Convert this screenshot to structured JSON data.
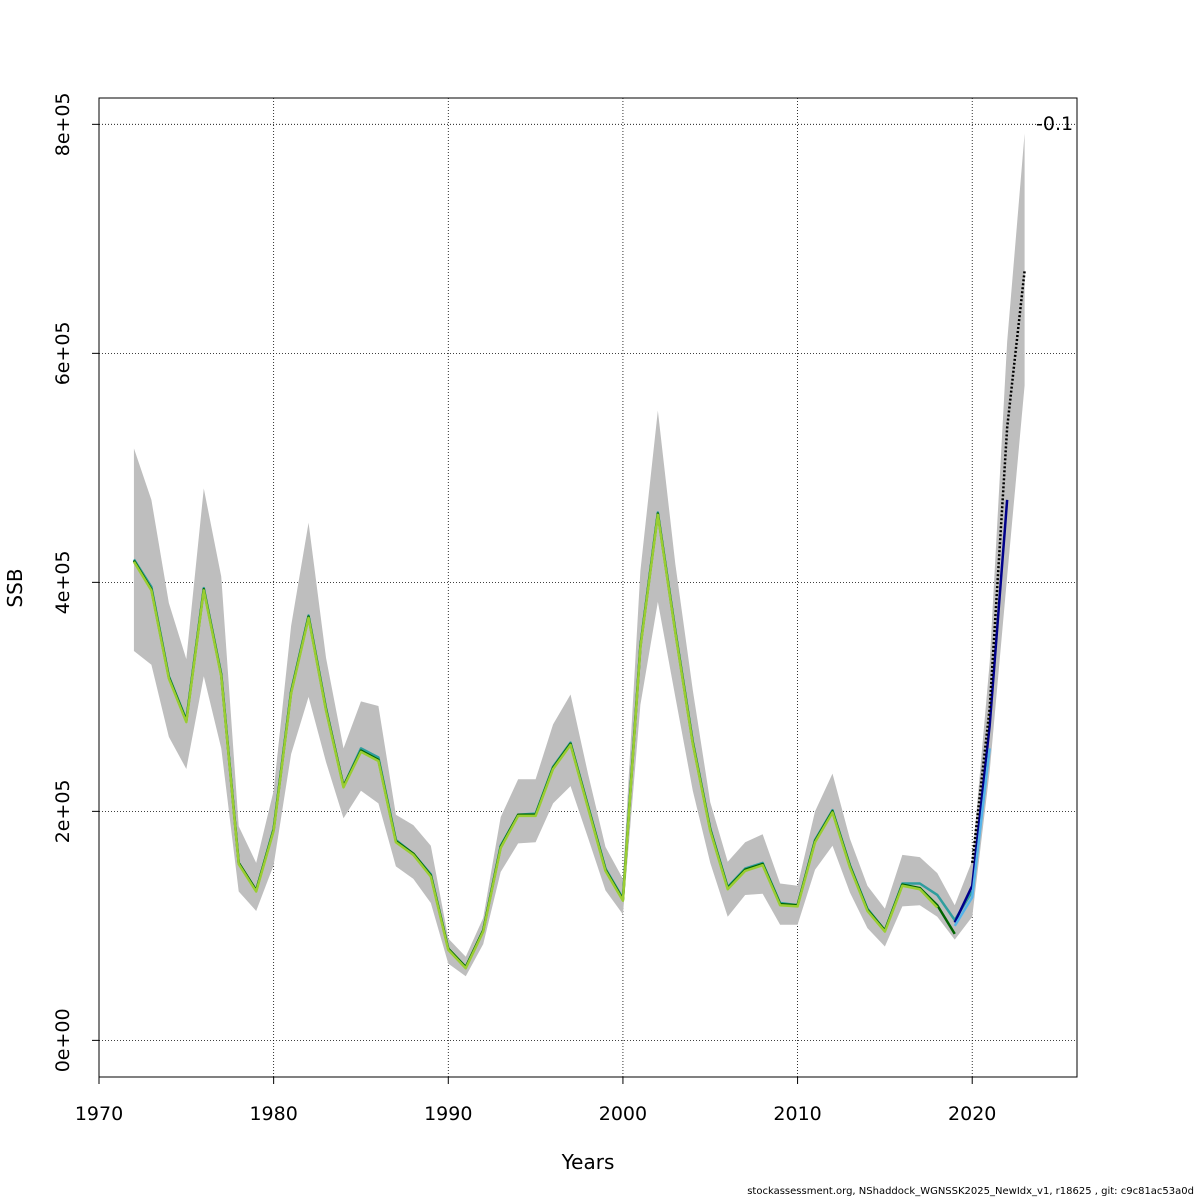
{
  "footer": "stockassessment.org, NShaddock_WGNSSK2025_NewIdx_v1, r18625 , git: c9c81ac53a0d",
  "chart_data": {
    "type": "line",
    "title": "",
    "xlabel": "Years",
    "ylabel": "SSB",
    "xlim": [
      1970,
      2026
    ],
    "ylim": [
      0,
      800000
    ],
    "grid": true,
    "x_ticks": [
      1970,
      1980,
      1990,
      2000,
      2010,
      2020
    ],
    "x_tick_labels": [
      "1970",
      "1980",
      "1990",
      "2000",
      "2010",
      "2020"
    ],
    "y_ticks": [
      0,
      200000,
      400000,
      600000,
      800000
    ],
    "y_tick_labels": [
      "0e+00",
      "2e+05",
      "4e+05",
      "6e+05",
      "8e+05"
    ],
    "annotation": "-0.1",
    "band_color": "#bebebe",
    "band": {
      "x": [
        1972,
        1973,
        1974,
        1975,
        1976,
        1977,
        1978,
        1979,
        1980,
        1981,
        1982,
        1983,
        1984,
        1985,
        1986,
        1987,
        1988,
        1989,
        1990,
        1991,
        1992,
        1993,
        1994,
        1995,
        1996,
        1997,
        1998,
        1999,
        2000,
        2001,
        2002,
        2003,
        2004,
        2005,
        2006,
        2007,
        2008,
        2009,
        2010,
        2011,
        2012,
        2013,
        2014,
        2015,
        2016,
        2017,
        2018,
        2019,
        2020,
        2021,
        2022,
        2023
      ],
      "lower": [
        340000,
        328000,
        265000,
        237000,
        318000,
        255000,
        130000,
        113000,
        153000,
        250000,
        300000,
        243000,
        194000,
        218000,
        207000,
        152000,
        141000,
        120000,
        67000,
        56000,
        84000,
        147000,
        172000,
        173000,
        207000,
        222000,
        177000,
        131000,
        110000,
        293000,
        383000,
        300000,
        218000,
        155000,
        108000,
        127000,
        128000,
        101000,
        101000,
        149000,
        170000,
        129000,
        98000,
        82000,
        117000,
        118000,
        108000,
        88000,
        108000,
        235000,
        405000,
        572000
      ],
      "upper": [
        517000,
        472000,
        382000,
        333000,
        482000,
        405000,
        187000,
        155000,
        218000,
        362000,
        452000,
        334000,
        255000,
        296000,
        292000,
        197000,
        188000,
        170000,
        89000,
        73000,
        107000,
        195000,
        228000,
        228000,
        276000,
        302000,
        233000,
        169000,
        141000,
        410000,
        550000,
        416000,
        306000,
        208000,
        156000,
        173000,
        180000,
        137000,
        135000,
        200000,
        233000,
        176000,
        135000,
        115000,
        162000,
        160000,
        146000,
        118000,
        157000,
        330000,
        610000,
        792000
      ]
    },
    "series": [
      {
        "color": "#2f9e9e",
        "x": [
          1972,
          1973,
          1974,
          1975,
          1976,
          1977,
          1978,
          1979,
          1980,
          1981,
          1982,
          1983,
          1984,
          1985,
          1986,
          1987,
          1988,
          1989,
          1990,
          1991,
          1992,
          1993,
          1994,
          1995,
          1996,
          1997,
          1998,
          1999,
          2000,
          2001,
          2002,
          2003,
          2004,
          2005,
          2006,
          2007,
          2008,
          2009,
          2010,
          2011,
          2012,
          2013,
          2014,
          2015,
          2016,
          2017,
          2018,
          2019,
          2020
        ],
        "values": [
          420000,
          396000,
          318000,
          280000,
          395000,
          320000,
          155000,
          131000,
          185000,
          305000,
          371000,
          290000,
          222000,
          255000,
          247000,
          175000,
          163000,
          145000,
          80000,
          64000,
          96000,
          170000,
          197000,
          198000,
          239000,
          260000,
          205000,
          150000,
          124000,
          345000,
          461000,
          358000,
          261000,
          185000,
          134000,
          150000,
          155000,
          120000,
          118000,
          175000,
          201000,
          153000,
          115000,
          96000,
          137000,
          137000,
          127000,
          105000,
          130000
        ]
      },
      {
        "color": "#00008b",
        "x": [
          2019,
          2020,
          2021,
          2022
        ],
        "values": [
          103000,
          135000,
          275000,
          472000
        ]
      },
      {
        "color": "#56b4e9",
        "x": [
          2019,
          2020,
          2021
        ],
        "values": [
          100000,
          125000,
          255000
        ]
      },
      {
        "color": "#006400",
        "x": [
          1972,
          1973,
          1974,
          1975,
          1976,
          1977,
          1978,
          1979,
          1980,
          1981,
          1982,
          1983,
          1984,
          1985,
          1986,
          1987,
          1988,
          1989,
          1990,
          1991,
          1992,
          1993,
          1994,
          1995,
          1996,
          1997,
          1998,
          1999,
          2000,
          2001,
          2002,
          2003,
          2004,
          2005,
          2006,
          2007,
          2008,
          2009,
          2010,
          2011,
          2012,
          2013,
          2014,
          2015,
          2016,
          2017,
          2018,
          2019
        ],
        "values": [
          419000,
          394000,
          317000,
          279000,
          394000,
          319000,
          155000,
          131000,
          184000,
          304000,
          370000,
          289000,
          222000,
          253000,
          245000,
          174000,
          163000,
          144000,
          80000,
          64000,
          96000,
          169000,
          197000,
          197000,
          238000,
          259000,
          204000,
          149000,
          123000,
          344000,
          460000,
          357000,
          260000,
          184000,
          133000,
          149000,
          154000,
          119000,
          118000,
          174000,
          200000,
          152000,
          114000,
          96000,
          136000,
          133000,
          118000,
          93000
        ]
      },
      {
        "color": "#9acd32",
        "x": [
          1972,
          1973,
          1974,
          1975,
          1976,
          1977,
          1978,
          1979,
          1980,
          1981,
          1982,
          1983,
          1984,
          1985,
          1986,
          1987,
          1988,
          1989,
          1990,
          1991,
          1992,
          1993,
          1994,
          1995,
          1996,
          1997,
          1998,
          1999,
          2000,
          2001,
          2002,
          2003,
          2004,
          2005,
          2006,
          2007,
          2008,
          2009,
          2010,
          2011,
          2012,
          2013,
          2014,
          2015,
          2016,
          2017,
          2018
        ],
        "values": [
          418000,
          393000,
          316000,
          278000,
          393000,
          318000,
          154000,
          130000,
          183000,
          303000,
          369000,
          288000,
          221000,
          252000,
          244000,
          173000,
          162000,
          143000,
          79000,
          63000,
          95000,
          168000,
          196000,
          196000,
          237000,
          258000,
          203000,
          148000,
          122000,
          343000,
          459000,
          356000,
          259000,
          183000,
          132000,
          148000,
          153000,
          118000,
          117000,
          173000,
          199000,
          151000,
          113000,
          95000,
          135000,
          132000,
          116000
        ]
      },
      {
        "color": "#000000",
        "dashed": true,
        "x": [
          2020,
          2021,
          2022,
          2023
        ],
        "values": [
          155000,
          290000,
          535000,
          672000
        ]
      }
    ]
  }
}
